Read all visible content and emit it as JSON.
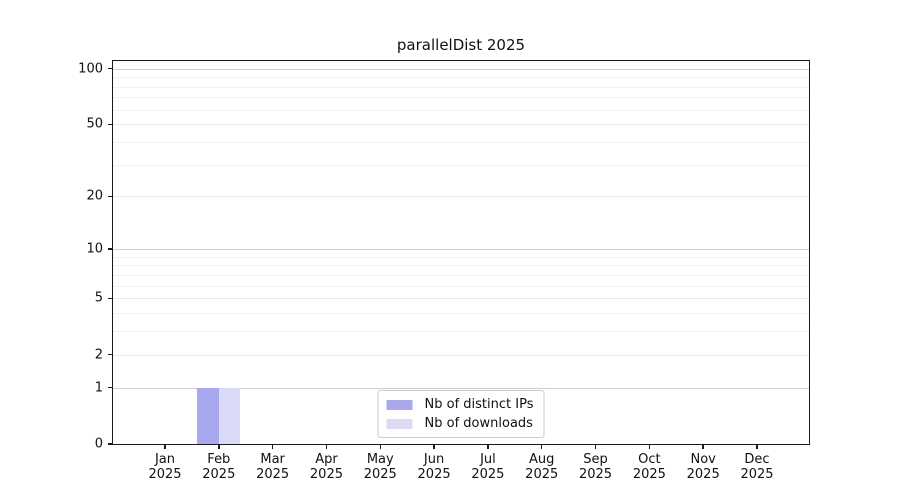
{
  "chart_data": {
    "type": "bar",
    "title": "parallelDist 2025",
    "categories": [
      "Jan 2025",
      "Feb 2025",
      "Mar 2025",
      "Apr 2025",
      "May 2025",
      "Jun 2025",
      "Jul 2025",
      "Aug 2025",
      "Sep 2025",
      "Oct 2025",
      "Nov 2025",
      "Dec 2025"
    ],
    "series": [
      {
        "name": "Nb of distinct IPs",
        "color": "#a8a8ef",
        "values": [
          0,
          1,
          0,
          0,
          0,
          0,
          0,
          0,
          0,
          0,
          0,
          0
        ]
      },
      {
        "name": "Nb of downloads",
        "color": "#dbdbf7",
        "values": [
          0,
          1,
          0,
          0,
          0,
          0,
          0,
          0,
          0,
          0,
          0,
          0
        ]
      }
    ],
    "xlabel": "",
    "ylabel": "",
    "ylim": [
      0,
      100
    ],
    "y_axis_top": 110,
    "y_scale": "log1p",
    "y_tick_values": [
      0,
      1,
      2,
      5,
      10,
      20,
      50,
      100
    ],
    "y_tick_labels": [
      "0",
      "1",
      "2",
      "5",
      "10",
      "20",
      "50",
      "100"
    ],
    "y_major_gridlines": [
      1,
      10,
      100
    ],
    "y_intermediate_gridlines": [
      2,
      5,
      20,
      50
    ],
    "y_minor_gridlines": [
      3,
      4,
      6,
      7,
      8,
      9,
      30,
      40,
      60,
      70,
      80,
      90
    ],
    "grid": true,
    "legend_position": "lower center"
  },
  "colors": {
    "background": "#ffffff",
    "axis": "#1a1a1a",
    "text": "#111111",
    "grid_major": "#cfcfcf",
    "grid_mid": "#e8e8e8",
    "grid_minor": "#f2f2f2",
    "legend_border": "#cccccc"
  }
}
